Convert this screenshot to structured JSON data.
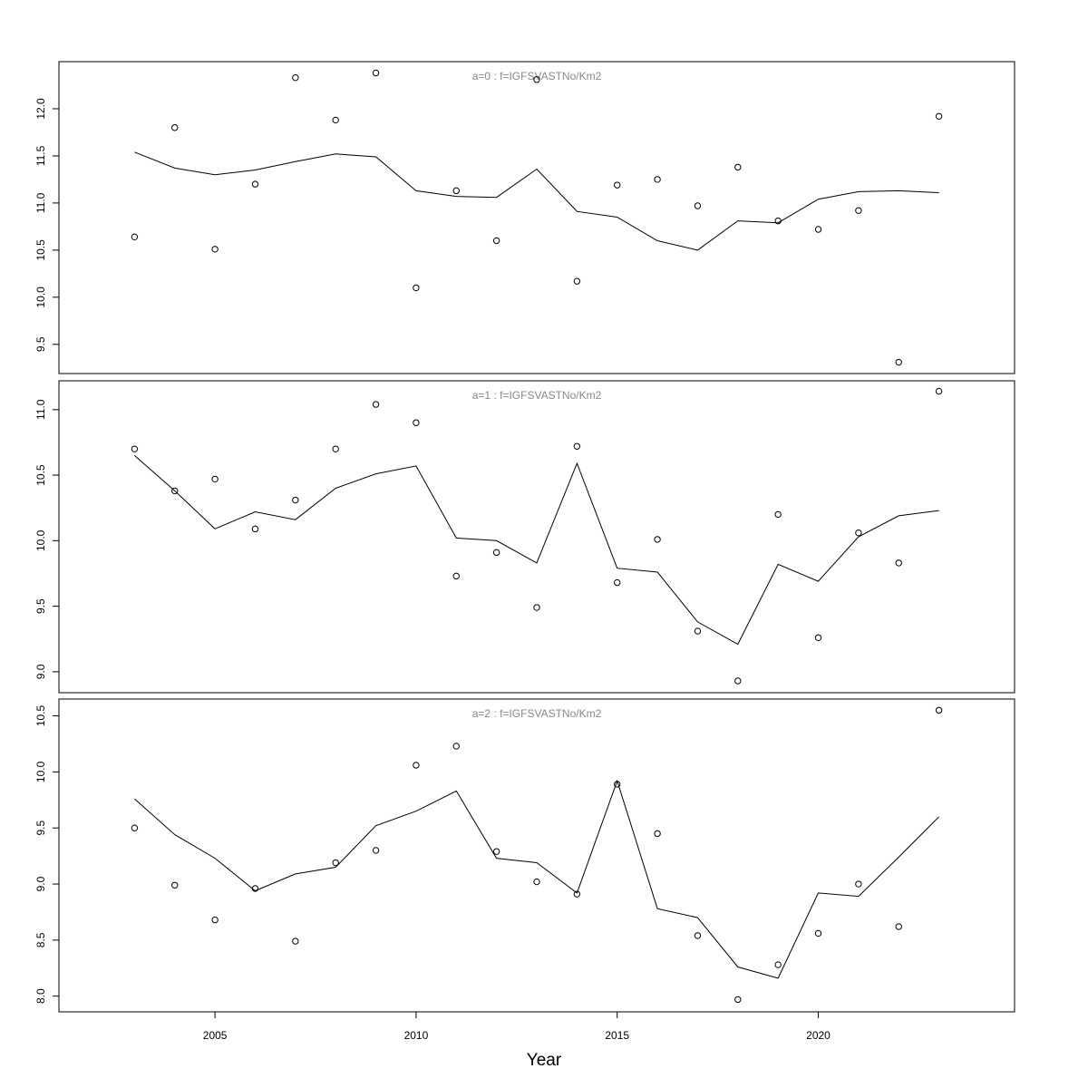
{
  "chart_data": [
    {
      "type": "scatter+line",
      "title": "a=0  :  f=IGFSVASTNo/Km2",
      "xlabel": "Year",
      "x": [
        2003,
        2004,
        2005,
        2006,
        2007,
        2008,
        2009,
        2010,
        2011,
        2012,
        2013,
        2014,
        2015,
        2016,
        2017,
        2018,
        2019,
        2020,
        2021,
        2022,
        2023
      ],
      "points": [
        10.64,
        11.8,
        10.51,
        11.2,
        12.33,
        11.88,
        12.38,
        10.1,
        11.13,
        10.6,
        12.31,
        10.17,
        11.19,
        11.25,
        10.97,
        11.38,
        10.81,
        10.72,
        10.92,
        9.31,
        11.92
      ],
      "line": [
        11.54,
        11.37,
        11.3,
        11.35,
        11.44,
        11.52,
        11.49,
        11.13,
        11.07,
        11.06,
        11.36,
        10.91,
        10.85,
        10.6,
        10.5,
        10.81,
        10.79,
        11.04,
        11.12,
        11.13,
        11.11
      ],
      "ylim": [
        9.19,
        12.5
      ],
      "yticks": [
        "9.5",
        "10.0",
        "10.5",
        "11.0",
        "11.5",
        "12.0"
      ]
    },
    {
      "type": "scatter+line",
      "title": "a=1  :  f=IGFSVASTNo/Km2",
      "x": [
        2003,
        2004,
        2005,
        2006,
        2007,
        2008,
        2009,
        2010,
        2011,
        2012,
        2013,
        2014,
        2015,
        2016,
        2017,
        2018,
        2019,
        2020,
        2021,
        2022,
        2023
      ],
      "points": [
        10.7,
        10.38,
        10.47,
        10.09,
        10.31,
        10.7,
        11.04,
        10.9,
        9.73,
        9.91,
        9.49,
        10.72,
        9.68,
        10.01,
        9.31,
        8.93,
        10.2,
        9.26,
        10.06,
        9.83,
        11.14
      ],
      "line": [
        10.65,
        10.38,
        10.09,
        10.22,
        10.16,
        10.4,
        10.51,
        10.57,
        10.02,
        10.0,
        9.83,
        10.59,
        9.79,
        9.76,
        9.38,
        9.21,
        9.82,
        9.69,
        10.03,
        10.19,
        10.23
      ],
      "ylim": [
        8.84,
        11.22
      ],
      "yticks": [
        "9.0",
        "9.5",
        "10.0",
        "10.5",
        "11.0"
      ]
    },
    {
      "type": "scatter+line",
      "title": "a=2  :  f=IGFSVASTNo/Km2",
      "x": [
        2003,
        2004,
        2005,
        2006,
        2007,
        2008,
        2009,
        2010,
        2011,
        2012,
        2013,
        2014,
        2015,
        2016,
        2017,
        2018,
        2019,
        2020,
        2021,
        2022,
        2023
      ],
      "points": [
        9.5,
        8.99,
        8.68,
        8.96,
        8.49,
        9.19,
        9.3,
        10.06,
        10.23,
        9.29,
        9.02,
        8.91,
        9.89,
        9.45,
        8.54,
        7.97,
        8.28,
        8.56,
        9.0,
        8.62,
        10.55
      ],
      "line": [
        9.76,
        9.44,
        9.23,
        8.94,
        9.09,
        9.15,
        9.52,
        9.65,
        9.83,
        9.23,
        9.19,
        8.92,
        9.92,
        8.78,
        8.7,
        8.26,
        8.16,
        8.92,
        8.89,
        9.24,
        9.6
      ],
      "ylim": [
        7.86,
        10.65
      ],
      "yticks": [
        "8.0",
        "8.5",
        "9.0",
        "9.5",
        "10.0",
        "10.5"
      ]
    }
  ],
  "xaxis": {
    "label": "Year",
    "xlim": [
      2001.12,
      2024.88
    ],
    "ticks": [
      "2005",
      "2010",
      "2015",
      "2020"
    ]
  }
}
